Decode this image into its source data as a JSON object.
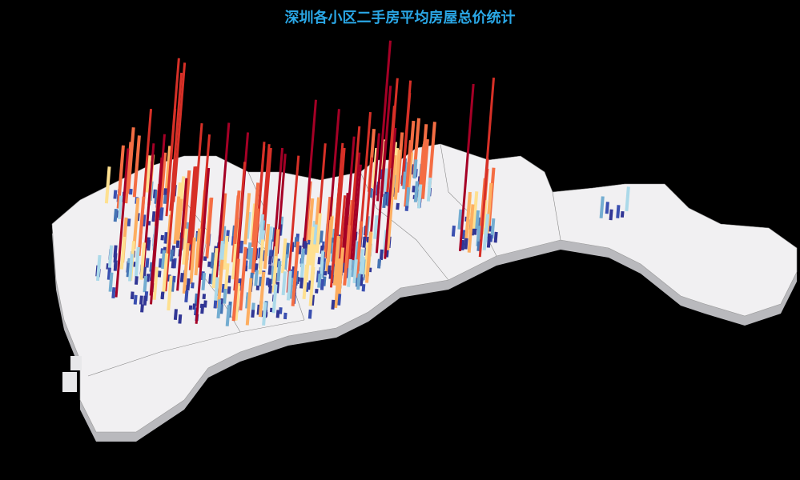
{
  "header": {
    "title": "深圳各小区二手房平均房屋总价统计"
  }
}
